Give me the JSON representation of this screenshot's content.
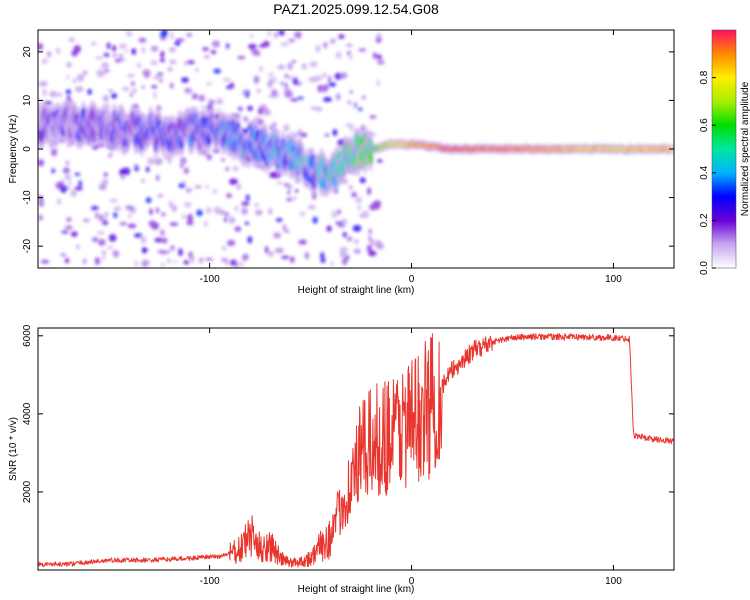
{
  "title": "PAZ1.2025.099.12.54.G08",
  "chart_data": [
    {
      "type": "heatmap",
      "xlabel": "Height of straight line (km)",
      "ylabel": "Frequency (Hz)",
      "xlim": [
        -185,
        130
      ],
      "ylim": [
        -24.5,
        24.5
      ],
      "x_ticks": [
        -100,
        0,
        100
      ],
      "y_ticks": [
        -20,
        -10,
        0,
        10,
        20
      ],
      "grid": false,
      "colorbar": {
        "label": "Normalized spectral amplitude",
        "range": [
          0,
          1
        ],
        "ticks": [
          "0.0",
          "0.2",
          "0.4",
          "0.6",
          "0.8"
        ]
      },
      "ridge": {
        "x": [
          -180,
          -160,
          -140,
          -120,
          -100,
          -90,
          -80,
          -70,
          -60,
          -50,
          -40,
          -30,
          -20,
          -10,
          0,
          20,
          50,
          100,
          130
        ],
        "frequency": [
          5,
          5,
          4,
          3,
          4,
          3,
          1,
          0,
          -1,
          -4,
          -6,
          -1,
          0,
          1,
          1,
          0,
          0,
          0,
          0
        ],
        "amplitude": [
          0.15,
          0.18,
          0.2,
          0.22,
          0.25,
          0.3,
          0.3,
          0.3,
          0.3,
          0.35,
          0.4,
          0.5,
          0.6,
          0.75,
          0.85,
          0.95,
          0.9,
          0.8,
          0.85
        ]
      }
    },
    {
      "type": "line",
      "xlabel": "Height of straight line (km)",
      "ylabel": "SNR (10 * v/v)",
      "xlim": [
        -185,
        130
      ],
      "ylim": [
        0,
        6200
      ],
      "x_ticks": [
        -100,
        0,
        100
      ],
      "y_ticks": [
        2000,
        4000,
        6000
      ],
      "grid": false,
      "color": "#e8362f",
      "series": [
        {
          "x": [
            -185,
            -170,
            -150,
            -130,
            -110,
            -95,
            -85,
            -80,
            -75,
            -70,
            -65,
            -60,
            -55,
            -50,
            -45,
            -40,
            -35,
            -30,
            -25,
            -20,
            -15,
            -10,
            -5,
            0,
            5,
            10,
            15,
            20,
            30,
            40,
            50,
            60,
            80,
            100,
            108,
            110,
            115,
            120,
            130
          ],
          "y": [
            150,
            150,
            250,
            250,
            300,
            350,
            500,
            900,
            550,
            650,
            300,
            180,
            220,
            300,
            600,
            900,
            1600,
            2200,
            3000,
            3200,
            3400,
            3500,
            3700,
            3800,
            3950,
            4300,
            4700,
            5100,
            5600,
            5850,
            5950,
            5980,
            5970,
            5950,
            5920,
            3450,
            3400,
            3350,
            3300
          ]
        }
      ]
    }
  ]
}
